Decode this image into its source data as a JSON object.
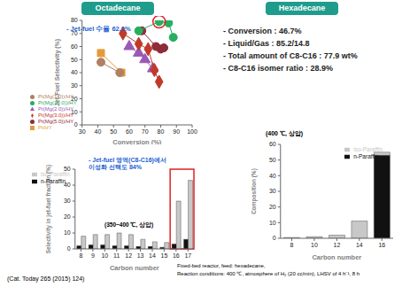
{
  "headers": [
    "Octadecane",
    "Hexadecane"
  ],
  "summary": [
    "- Conversion : 46.7%",
    "- Liquid/Gas : 85.2/14.8",
    "- Total amount of C8-C16 : 77.9 wt%",
    "- C8-C16 isomer ratio : 28.9%"
  ],
  "citation": "(Cat. Today 265 (2015) 124)",
  "footer": [
    "Fixed-bed reactor, feed: hexadecane,",
    "Reaction conditions: 400 ℃, atmosphere of H₂ (20 cc/min), LHSV of 4 h⁻¹, 8 h"
  ],
  "chart_data": [
    {
      "type": "scatter",
      "x_label": "Conversion (%)",
      "y_label": "Jet-Fuel Selectivity (%)",
      "xlim": [
        30,
        100
      ],
      "xticks": [
        30,
        40,
        50,
        60,
        70,
        80,
        90,
        100
      ],
      "ylim": [
        0,
        80
      ],
      "yticks": [
        0,
        10,
        20,
        30,
        40,
        50,
        60,
        70,
        80
      ],
      "grid": false,
      "legend": "lower left",
      "annotation": "- Jet-fuel 수율 62.2%",
      "highlight": {
        "series": "Pt(Mg(10.0))/HY",
        "index": 1
      },
      "series": [
        {
          "name": "Pt/HY",
          "color": "#e69b3a",
          "marker": "square",
          "line_style": "solid",
          "x": [
            42,
            55
          ],
          "values": [
            55,
            40
          ]
        },
        {
          "name": "Pt(Mg(1.0))/HY",
          "color": "#b08060",
          "marker": "circle",
          "line_style": "solid",
          "x": [
            42,
            54
          ],
          "values": [
            48,
            40
          ]
        },
        {
          "name": "Pt(Mg(2.0))/HY",
          "color": "#9b59b6",
          "marker": "triangle",
          "line_style": "solid",
          "x": [
            60,
            66,
            70,
            75
          ],
          "values": [
            60,
            55,
            50,
            43
          ]
        },
        {
          "name": "Pt(Mg(3.0))/HY",
          "color": "#c0392b",
          "marker": "diamond",
          "line_style": "solid",
          "x": [
            56,
            66,
            72,
            76,
            79
          ],
          "values": [
            70,
            62,
            58,
            42,
            33
          ]
        },
        {
          "name": "Pt(Mg(5.0))/HY",
          "color": "#8e2c3c",
          "marker": "circle",
          "line_style": "solid",
          "x": [
            68,
            77,
            80,
            82
          ],
          "values": [
            72,
            60,
            58,
            59
          ]
        },
        {
          "name": "Pt(Mg(10.0))/HY",
          "color": "#27ae60",
          "marker": "circle",
          "line_style": "solid",
          "x": [
            66,
            79,
            85,
            88
          ],
          "values": [
            72,
            79,
            78,
            67
          ]
        }
      ]
    },
    {
      "type": "bar",
      "x_label": "Carbon number",
      "y_label": "Selectivity in jet-fuel fraction (%)",
      "categories": [
        "8",
        "9",
        "10",
        "11",
        "12",
        "13",
        "14",
        "15",
        "16",
        "17"
      ],
      "ylim": [
        0,
        50
      ],
      "yticks": [
        0,
        10,
        20,
        30,
        40,
        50
      ],
      "grid": false,
      "legend": "upper left",
      "stacked": false,
      "annotation": [
        "- Jet-fuel 영역(C8-C16)에서",
        "이성화 선택도 84%"
      ],
      "condition": "(350~400 ℃, 상압)",
      "highlight": [
        "16",
        "17"
      ],
      "series": [
        {
          "name": "n-Paraffin",
          "color": "#111111",
          "values": [
            2,
            2.5,
            2.5,
            2,
            2,
            1.5,
            1.5,
            1,
            3,
            6
          ]
        },
        {
          "name": "iso-Paraffin",
          "color": "#c8c8c8",
          "values": [
            8,
            9,
            9,
            10,
            9,
            6,
            4.5,
            4,
            30,
            43
          ]
        }
      ]
    },
    {
      "type": "bar",
      "x_label": "Carbon number",
      "y_label": "Composition (%)",
      "categories": [
        "8",
        "10",
        "12",
        "14",
        "16"
      ],
      "ylim": [
        0,
        60
      ],
      "yticks": [
        0,
        10,
        20,
        30,
        40,
        50,
        60
      ],
      "grid": false,
      "legend": "upper right",
      "stacked": true,
      "condition": "(400 ℃, 상압)",
      "series": [
        {
          "name": "n-Paraffin",
          "color": "#111111",
          "values": [
            0,
            0,
            0,
            0,
            53
          ]
        },
        {
          "name": "iso-Paraffin",
          "color": "#c8c8c8",
          "values": [
            0.5,
            1,
            2,
            11,
            2
          ]
        }
      ]
    }
  ]
}
